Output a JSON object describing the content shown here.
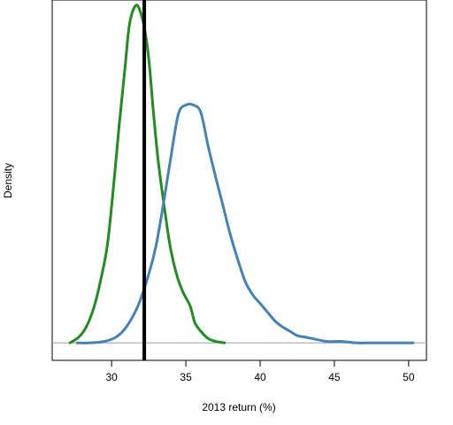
{
  "chart_data": {
    "type": "line",
    "title": "",
    "xlabel": "2013 return (%)",
    "ylabel": "Density",
    "xlim": [
      26.0,
      51.2
    ],
    "ylim": [
      -0.012,
      0.235
    ],
    "xticks": [
      30,
      35,
      40,
      45,
      50
    ],
    "xtick_labels": [
      "30",
      "35",
      "40",
      "45",
      "50"
    ],
    "y_ticks_shown": false,
    "grid": false,
    "legend": "none",
    "baseline": {
      "y": 0,
      "color": "#a0a0a0"
    },
    "vline": {
      "x": 32.2,
      "color": "#000000"
    },
    "series": [
      {
        "color": "#228b22",
        "x": [
          27.2,
          27.8,
          28.3,
          28.8,
          29.2,
          29.7,
          30.1,
          30.5,
          30.9,
          31.2,
          31.6,
          31.9,
          32.2,
          32.5,
          32.8,
          33.1,
          33.4,
          33.7,
          34.0,
          34.4,
          34.8,
          35.3,
          35.6,
          36.0,
          36.5,
          37.0,
          37.6
        ],
        "y": [
          0.0,
          0.004,
          0.011,
          0.024,
          0.04,
          0.066,
          0.104,
          0.148,
          0.188,
          0.218,
          0.231,
          0.228,
          0.216,
          0.195,
          0.16,
          0.128,
          0.104,
          0.082,
          0.063,
          0.046,
          0.035,
          0.025,
          0.014,
          0.008,
          0.003,
          0.001,
          0.0
        ]
      },
      {
        "color": "#4682b4",
        "x": [
          27.7,
          28.5,
          29.5,
          30.3,
          31.0,
          31.8,
          32.5,
          33.0,
          33.5,
          34.0,
          34.5,
          35.0,
          35.5,
          36.0,
          36.5,
          37.0,
          37.5,
          38.0,
          38.5,
          39.0,
          39.5,
          40.0,
          40.5,
          41.0,
          41.5,
          42.0,
          42.5,
          43.0,
          43.5,
          44.5,
          45.5,
          46.5,
          47.5,
          48.5,
          50.3
        ],
        "y": [
          0.0,
          0.0,
          0.001,
          0.004,
          0.011,
          0.026,
          0.047,
          0.067,
          0.096,
          0.128,
          0.157,
          0.163,
          0.163,
          0.158,
          0.135,
          0.114,
          0.094,
          0.074,
          0.057,
          0.042,
          0.033,
          0.027,
          0.021,
          0.015,
          0.011,
          0.008,
          0.005,
          0.004,
          0.003,
          0.001,
          0.001,
          0.0,
          0.0,
          0.0,
          0.0
        ]
      }
    ]
  }
}
